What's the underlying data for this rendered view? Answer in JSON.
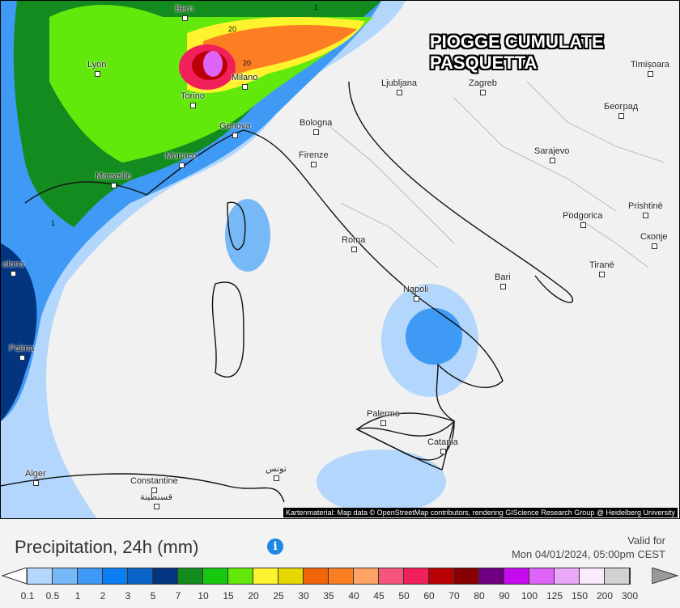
{
  "map": {
    "title_lines": [
      "PIOGGE CUMULATE",
      "PASQUETTA"
    ],
    "credit": "Kartenmaterial: Map data © OpenStreetMap contributors, rendering GIScience Research Group @ Heidelberg University",
    "cities": [
      {
        "name": "Bern"
      },
      {
        "name": "Lyon"
      },
      {
        "name": "Milano"
      },
      {
        "name": "Torino"
      },
      {
        "name": "Genova"
      },
      {
        "name": "Bologna"
      },
      {
        "name": "Monaco"
      },
      {
        "name": "Marseille"
      },
      {
        "name": "Firenze"
      },
      {
        "name": "Roma"
      },
      {
        "name": "Napoli"
      },
      {
        "name": "Bari"
      },
      {
        "name": "Palermo"
      },
      {
        "name": "Catania"
      },
      {
        "name": "Palma"
      },
      {
        "name": "Alger"
      },
      {
        "name": "Constantine"
      },
      {
        "name": "قسنطينة"
      },
      {
        "name": "تونس"
      },
      {
        "name": "Sarajevo"
      },
      {
        "name": "Podgorica"
      },
      {
        "name": "Tiranë"
      },
      {
        "name": "Prishtinë"
      },
      {
        "name": "Скопје"
      },
      {
        "name": "Zagreb"
      },
      {
        "name": "Ljubljana"
      },
      {
        "name": "Timișoara"
      },
      {
        "name": "Београд"
      },
      {
        "name": "elona"
      }
    ],
    "contour_labels": [
      "20",
      "20",
      "1",
      "1"
    ]
  },
  "legend": {
    "title": "Precipitation, 24h (mm)",
    "info_icon": "info-icon",
    "valid_label": "Valid for",
    "valid_time": "Mon 04/01/2024, 05:00pm CEST",
    "colors": [
      "#b3d6fc",
      "#77b8f7",
      "#3e9af5",
      "#0a7ef2",
      "#0a64c8",
      "#033480",
      "#138b1f",
      "#16c80f",
      "#62e80a",
      "#fff22e",
      "#e6d700",
      "#f0640a",
      "#fb7f22",
      "#fda365",
      "#f5557a",
      "#f2205a",
      "#bb0005",
      "#870001",
      "#6f0081",
      "#c60af0",
      "#de64f7",
      "#eba8fb",
      "#f8ecfa",
      "#d2d2d2"
    ],
    "ticks": [
      "0.1",
      "0.5",
      "1",
      "2",
      "3",
      "5",
      "7",
      "10",
      "15",
      "20",
      "25",
      "30",
      "35",
      "40",
      "45",
      "50",
      "60",
      "70",
      "80",
      "90",
      "100",
      "125",
      "150",
      "200",
      "300"
    ]
  }
}
